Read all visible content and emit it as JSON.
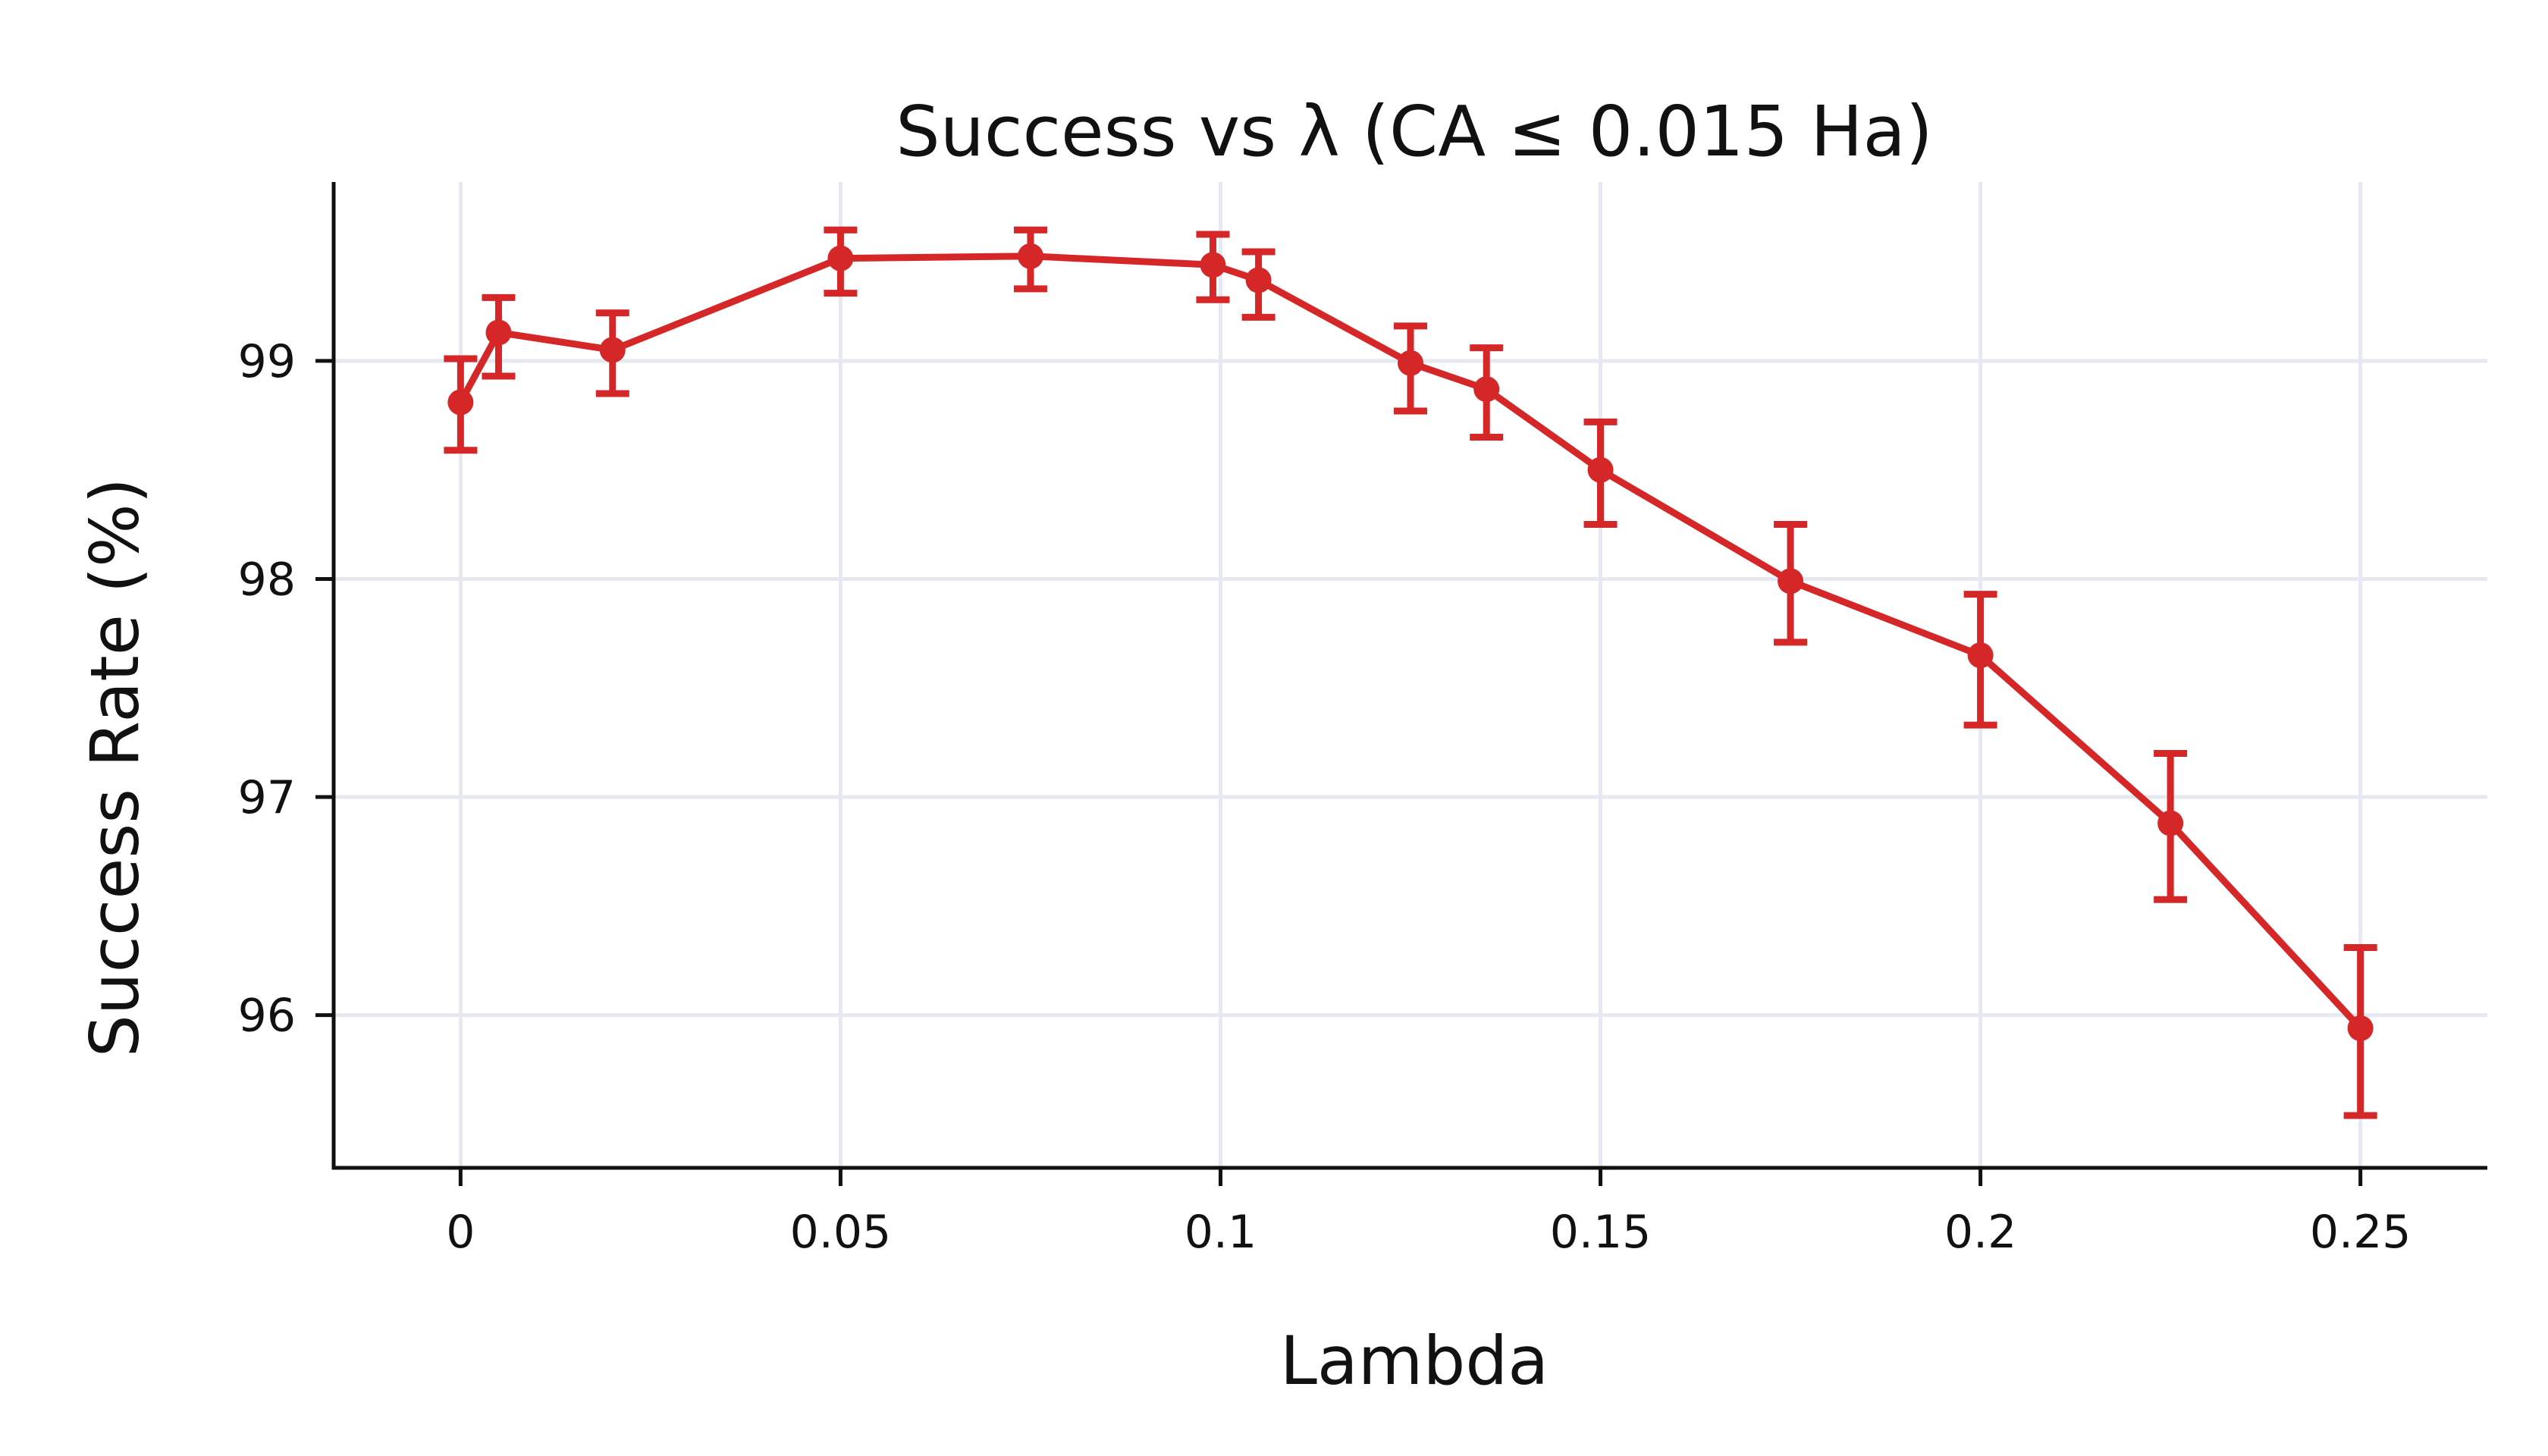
{
  "chart_data": {
    "type": "line",
    "title": "Success vs λ (CA ≤ 0.015 Ha)",
    "xlabel": "Lambda",
    "ylabel": "Success Rate (%)",
    "xlim": [
      -0.0167,
      0.2667
    ],
    "ylim": [
      95.3,
      99.82
    ],
    "x_ticks": [
      0,
      0.05,
      0.1,
      0.15,
      0.2,
      0.25
    ],
    "x_tick_labels": [
      "0",
      "0.05",
      "0.1",
      "0.15",
      "0.2",
      "0.25"
    ],
    "y_ticks": [
      96,
      97,
      98,
      99
    ],
    "y_tick_labels": [
      "96",
      "97",
      "98",
      "99"
    ],
    "grid": true,
    "color": "#d62728",
    "series": [
      {
        "name": "Success Rate",
        "x": [
          0,
          0.005,
          0.02,
          0.05,
          0.075,
          0.099,
          0.105,
          0.125,
          0.135,
          0.15,
          0.175,
          0.2,
          0.225,
          0.25
        ],
        "y": [
          98.81,
          99.13,
          99.05,
          99.47,
          99.48,
          99.44,
          99.37,
          98.99,
          98.87,
          98.5,
          97.99,
          97.65,
          96.88,
          95.94
        ],
        "err_low": [
          98.59,
          98.93,
          98.85,
          99.31,
          99.33,
          99.28,
          99.2,
          98.77,
          98.65,
          98.25,
          97.71,
          97.33,
          96.53,
          95.54
        ],
        "err_high": [
          99.01,
          99.29,
          99.22,
          99.6,
          99.6,
          99.58,
          99.5,
          99.16,
          99.06,
          98.72,
          98.25,
          97.93,
          97.2,
          96.31
        ]
      }
    ]
  }
}
